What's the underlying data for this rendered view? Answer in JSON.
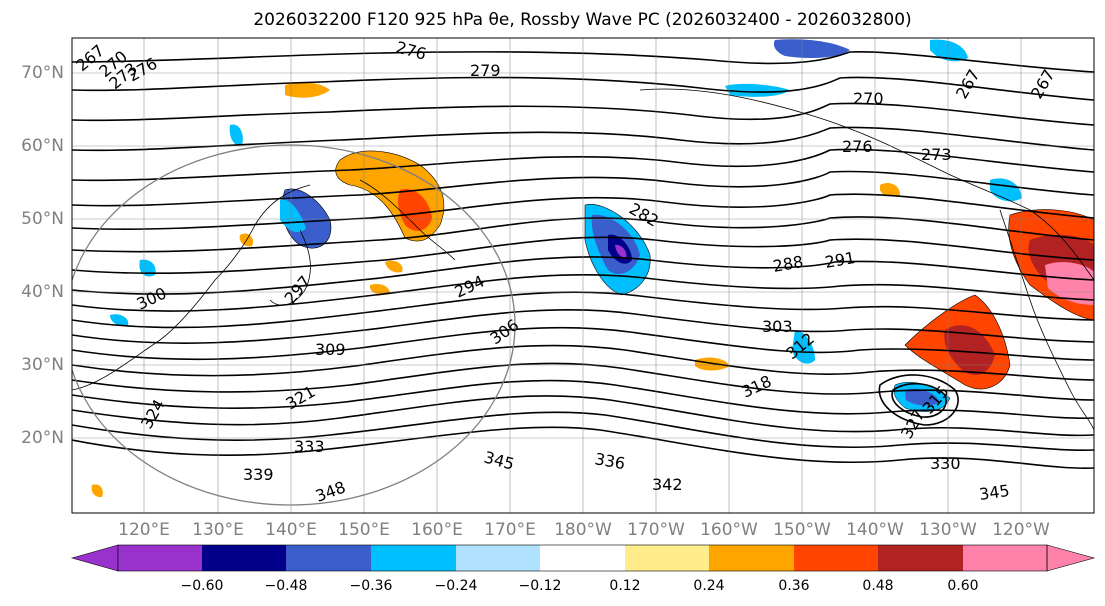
{
  "title": "2026032200 F120 925 hPa θe, Rossby Wave PC (2026032400 - 2026032800)",
  "lat_labels": [
    "70°N",
    "60°N",
    "50°N",
    "40°N",
    "30°N",
    "20°N"
  ],
  "lon_labels": [
    "120°E",
    "130°E",
    "140°E",
    "150°E",
    "160°E",
    "170°E",
    "180°W",
    "170°W",
    "160°W",
    "150°W",
    "140°W",
    "130°W",
    "120°W"
  ],
  "contour_labels": [
    "267",
    "270",
    "273",
    "276",
    "276",
    "279",
    "270",
    "276",
    "273",
    "267",
    "267",
    "282",
    "288",
    "291",
    "294",
    "297",
    "300",
    "303",
    "306",
    "309",
    "312",
    "315",
    "318",
    "321",
    "324",
    "327",
    "330",
    "333",
    "336",
    "339",
    "342",
    "345",
    "345",
    "348"
  ],
  "colorbar": {
    "tick_labels": [
      "−0.60",
      "−0.48",
      "−0.36",
      "−0.24",
      "−0.12",
      "0.12",
      "0.24",
      "0.36",
      "0.48",
      "0.60"
    ],
    "colors": [
      "#9932cc",
      "#00008b",
      "#3a5fcd",
      "#00bfff",
      "#b0e2ff",
      "#ffffff",
      "#ffec8b",
      "#ffa500",
      "#ff4500",
      "#b22222",
      "#ff82ab"
    ]
  },
  "colors": {
    "contour": "#000000",
    "grid": "#808080",
    "coast": "#000000"
  }
}
